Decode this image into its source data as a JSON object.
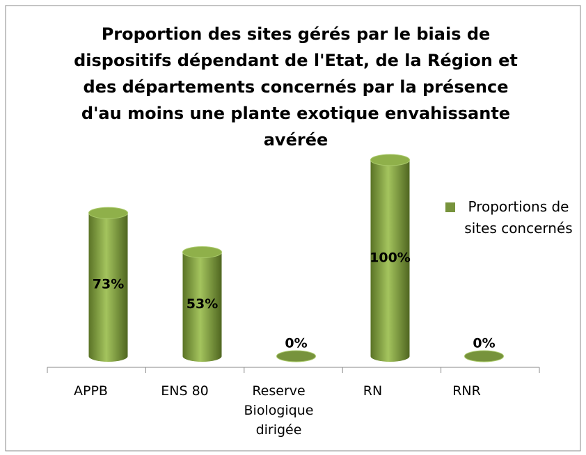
{
  "chart_data": {
    "type": "bar",
    "title": "Proportion des sites gérés par le biais de dispositifs dépendant de l'Etat, de la Région et des départements concernés par la présence d'au moins une plante exotique envahissante avérée",
    "categories": [
      "APPB",
      "ENS 80",
      "Reserve Biologique dirigée",
      "RN",
      "RNR"
    ],
    "series": [
      {
        "name": "Proportions de sites concernés",
        "color": "#77933c",
        "values": [
          73,
          53,
          0,
          100,
          0
        ],
        "value_labels": [
          "73%",
          "53%",
          "0%",
          "100%",
          "0%"
        ]
      }
    ],
    "ylim": [
      0,
      100
    ],
    "legend": "right"
  }
}
